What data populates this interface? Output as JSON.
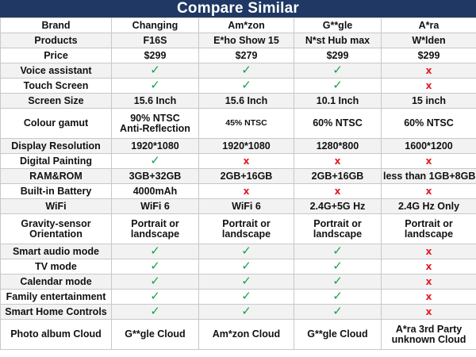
{
  "title": "Compare Similar",
  "colors": {
    "header_bg": "#1f3864",
    "check": "#16a34a",
    "cross": "#e31b23"
  },
  "icons": {
    "check": "✓",
    "cross": "x"
  },
  "rows": [
    {
      "label": "Brand",
      "cells": [
        {
          "text": "Changing"
        },
        {
          "text": "Am*zon"
        },
        {
          "text": "G**gle"
        },
        {
          "text": "A*ra"
        }
      ]
    },
    {
      "label": "Products",
      "cells": [
        {
          "text": "F16S"
        },
        {
          "text": "E*ho Show 15"
        },
        {
          "text": "N*st Hub max"
        },
        {
          "text": "W*lden"
        }
      ]
    },
    {
      "label": "Price",
      "cells": [
        {
          "text": "$299"
        },
        {
          "text": "$279"
        },
        {
          "text": "$299"
        },
        {
          "text": "$299"
        }
      ]
    },
    {
      "label": "Voice assistant",
      "cells": [
        {
          "icon": "check"
        },
        {
          "icon": "check"
        },
        {
          "icon": "check"
        },
        {
          "icon": "cross"
        }
      ]
    },
    {
      "label": "Touch Screen",
      "cells": [
        {
          "icon": "check"
        },
        {
          "icon": "check"
        },
        {
          "icon": "check"
        },
        {
          "icon": "cross"
        }
      ]
    },
    {
      "label": "Screen Size",
      "cells": [
        {
          "text": "15.6 Inch"
        },
        {
          "text": "15.6 Inch"
        },
        {
          "text": "10.1 Inch"
        },
        {
          "text": "15 inch"
        }
      ]
    },
    {
      "label": "Colour gamut",
      "cells": [
        {
          "lines": [
            "90% NTSC",
            "Anti-Reflection"
          ]
        },
        {
          "text": "45% NTSC"
        },
        {
          "text": "60% NTSC"
        },
        {
          "text": "60% NTSC"
        }
      ]
    },
    {
      "label": "Display Resolution",
      "cells": [
        {
          "text": "1920*1080"
        },
        {
          "text": "1920*1080"
        },
        {
          "text": "1280*800"
        },
        {
          "text": "1600*1200"
        }
      ]
    },
    {
      "label": "Digital Painting",
      "cells": [
        {
          "icon": "check"
        },
        {
          "icon": "cross"
        },
        {
          "icon": "cross"
        },
        {
          "icon": "cross"
        }
      ]
    },
    {
      "label": "RAM&ROM",
      "cells": [
        {
          "text": "3GB+32GB"
        },
        {
          "text": "2GB+16GB"
        },
        {
          "text": "2GB+16GB"
        },
        {
          "text": "less than 1GB+8GB"
        }
      ]
    },
    {
      "label": "Built-in Battery",
      "cells": [
        {
          "text": "4000mAh"
        },
        {
          "icon": "cross"
        },
        {
          "icon": "cross"
        },
        {
          "icon": "cross"
        }
      ]
    },
    {
      "label": "WiFi",
      "cells": [
        {
          "text": "WiFi 6"
        },
        {
          "text": "WiFi 6"
        },
        {
          "text": "2.4G+5G Hz"
        },
        {
          "text": "2.4G Hz Only"
        }
      ]
    },
    {
      "label": "Gravity-sensor Orientation",
      "cells": [
        {
          "lines": [
            "Portrait or",
            "landscape"
          ]
        },
        {
          "lines": [
            "Portrait or",
            "landscape"
          ]
        },
        {
          "lines": [
            "Portrait or",
            "landscape"
          ]
        },
        {
          "lines": [
            "Portrait or",
            "landscape"
          ]
        }
      ]
    },
    {
      "label": "Smart audio mode",
      "cells": [
        {
          "icon": "check"
        },
        {
          "icon": "check"
        },
        {
          "icon": "check"
        },
        {
          "icon": "cross"
        }
      ]
    },
    {
      "label": "TV mode",
      "cells": [
        {
          "icon": "check"
        },
        {
          "icon": "check"
        },
        {
          "icon": "check"
        },
        {
          "icon": "cross"
        }
      ]
    },
    {
      "label": "Calendar mode",
      "cells": [
        {
          "icon": "check"
        },
        {
          "icon": "check"
        },
        {
          "icon": "check"
        },
        {
          "icon": "cross"
        }
      ]
    },
    {
      "label": "Family entertainment",
      "cells": [
        {
          "icon": "check"
        },
        {
          "icon": "check"
        },
        {
          "icon": "check"
        },
        {
          "icon": "cross"
        }
      ]
    },
    {
      "label": "Smart Home Controls",
      "cells": [
        {
          "icon": "check"
        },
        {
          "icon": "check"
        },
        {
          "icon": "check"
        },
        {
          "icon": "cross"
        }
      ]
    },
    {
      "label": "Photo album Cloud",
      "cells": [
        {
          "text": "G**gle Cloud"
        },
        {
          "text": "Am*zon Cloud"
        },
        {
          "text": "G**gle Cloud"
        },
        {
          "lines": [
            "A*ra  3rd Party",
            "unknown Cloud"
          ]
        }
      ]
    }
  ]
}
